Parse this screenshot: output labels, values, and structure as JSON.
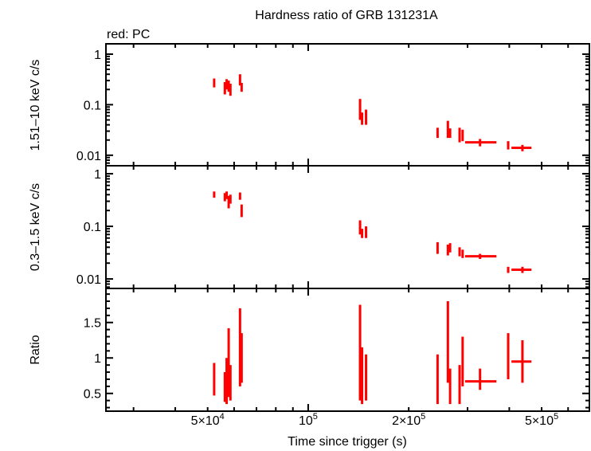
{
  "chart_data": {
    "type": "scatter",
    "title": "Hardness ratio of GRB 131231A",
    "legend_note": "red: PC",
    "xlabel": "Time since trigger (s)",
    "x_scale": "log",
    "xlim": [
      24800,
      695000
    ],
    "x_tick_labels": [
      {
        "value": 50000,
        "label": "5×10",
        "sup": "4"
      },
      {
        "value": 100000,
        "label": "10",
        "sup": "5"
      },
      {
        "value": 200000,
        "label": "2×10",
        "sup": "5"
      },
      {
        "value": 500000,
        "label": "5×10",
        "sup": "5"
      }
    ],
    "series_color": "#ff0000",
    "panels": [
      {
        "key": "hard",
        "ylabel": "1.51–10 keV c/s",
        "y_scale": "log",
        "ylim": [
          0.0062,
          1.6
        ],
        "ticks": [
          {
            "value": 1,
            "label": "1"
          },
          {
            "value": 0.1,
            "label": "0.1"
          },
          {
            "value": 0.01,
            "label": "0.01"
          }
        ]
      },
      {
        "key": "soft",
        "ylabel": "0.3–1.5 keV c/s",
        "y_scale": "log",
        "ylim": [
          0.0066,
          1.42
        ],
        "ticks": [
          {
            "value": 1,
            "label": "1"
          },
          {
            "value": 0.1,
            "label": "0.1"
          },
          {
            "value": 0.01,
            "label": "0.01"
          }
        ]
      },
      {
        "key": "ratio",
        "ylabel": "Ratio",
        "y_scale": "linear",
        "ylim": [
          0.25,
          1.98
        ],
        "ticks": [
          {
            "value": 1.5,
            "label": "1.5"
          },
          {
            "value": 1,
            "label": "1"
          },
          {
            "value": 0.5,
            "label": "0.5"
          }
        ]
      }
    ],
    "points": [
      {
        "t": 52300,
        "tlo": 52000,
        "thi": 52600,
        "hard": [
          0.27,
          0.22,
          0.33
        ],
        "soft": [
          0.4,
          0.35,
          0.46
        ],
        "ratio": [
          0.7,
          0.47,
          0.93
        ]
      },
      {
        "t": 56300,
        "tlo": 56000,
        "thi": 56600,
        "hard": [
          0.22,
          0.16,
          0.28
        ],
        "soft": [
          0.36,
          0.3,
          0.43
        ],
        "ratio": [
          0.55,
          0.38,
          0.8
        ]
      },
      {
        "t": 57000,
        "tlo": 56700,
        "thi": 57300,
        "hard": [
          0.26,
          0.2,
          0.32
        ],
        "soft": [
          0.4,
          0.33,
          0.46
        ],
        "ratio": [
          0.65,
          0.35,
          1.0
        ]
      },
      {
        "t": 57800,
        "tlo": 57500,
        "thi": 58100,
        "hard": [
          0.24,
          0.18,
          0.3
        ],
        "soft": [
          0.3,
          0.22,
          0.38
        ],
        "ratio": [
          0.78,
          0.45,
          1.42
        ]
      },
      {
        "t": 58500,
        "tlo": 58200,
        "thi": 58800,
        "hard": [
          0.2,
          0.15,
          0.26
        ],
        "soft": [
          0.33,
          0.27,
          0.4
        ],
        "ratio": [
          0.6,
          0.4,
          0.9
        ]
      },
      {
        "t": 62500,
        "tlo": 62200,
        "thi": 62800,
        "hard": [
          0.3,
          0.24,
          0.4
        ],
        "soft": [
          0.38,
          0.32,
          0.44
        ],
        "ratio": [
          0.85,
          0.6,
          1.7
        ]
      },
      {
        "t": 63200,
        "tlo": 62900,
        "thi": 63500,
        "hard": [
          0.22,
          0.18,
          0.27
        ],
        "soft": [
          0.2,
          0.15,
          0.26
        ],
        "ratio": [
          1.05,
          0.65,
          1.35
        ]
      },
      {
        "t": 143000,
        "tlo": 142500,
        "thi": 143500,
        "hard": [
          0.08,
          0.05,
          0.13
        ],
        "soft": [
          0.09,
          0.07,
          0.13
        ],
        "ratio": [
          0.75,
          0.4,
          1.75
        ]
      },
      {
        "t": 145000,
        "tlo": 144500,
        "thi": 145500,
        "hard": [
          0.05,
          0.04,
          0.07
        ],
        "soft": [
          0.07,
          0.06,
          0.09
        ],
        "ratio": [
          0.6,
          0.35,
          1.15
        ]
      },
      {
        "t": 149000,
        "tlo": 148500,
        "thi": 149500,
        "hard": [
          0.06,
          0.04,
          0.08
        ],
        "soft": [
          0.08,
          0.06,
          0.1
        ],
        "ratio": [
          0.65,
          0.4,
          1.05
        ]
      },
      {
        "t": 244000,
        "tlo": 243000,
        "thi": 245000,
        "hard": [
          0.028,
          0.022,
          0.035
        ],
        "soft": [
          0.04,
          0.03,
          0.05
        ],
        "ratio": [
          0.6,
          0.35,
          1.05
        ]
      },
      {
        "t": 262000,
        "tlo": 261000,
        "thi": 263000,
        "hard": [
          0.033,
          0.022,
          0.048
        ],
        "soft": [
          0.035,
          0.028,
          0.045
        ],
        "ratio": [
          0.95,
          0.65,
          1.8
        ]
      },
      {
        "t": 266000,
        "tlo": 265000,
        "thi": 267000,
        "hard": [
          0.028,
          0.022,
          0.034
        ],
        "soft": [
          0.04,
          0.032,
          0.048
        ],
        "ratio": [
          0.6,
          0.35,
          0.85
        ]
      },
      {
        "t": 284000,
        "tlo": 283000,
        "thi": 285000,
        "hard": [
          0.025,
          0.018,
          0.035
        ],
        "soft": [
          0.033,
          0.027,
          0.04
        ],
        "ratio": [
          0.65,
          0.35,
          0.9
        ]
      },
      {
        "t": 290000,
        "tlo": 289000,
        "thi": 291000,
        "hard": [
          0.025,
          0.019,
          0.032
        ],
        "soft": [
          0.03,
          0.025,
          0.036
        ],
        "ratio": [
          0.75,
          0.6,
          1.3
        ]
      },
      {
        "t": 327000,
        "tlo": 295000,
        "thi": 366000,
        "hard": [
          0.018,
          0.015,
          0.021
        ],
        "soft": [
          0.027,
          0.024,
          0.03
        ],
        "ratio": [
          0.67,
          0.55,
          0.85
        ]
      },
      {
        "t": 397000,
        "tlo": 394000,
        "thi": 400000,
        "hard": [
          0.016,
          0.013,
          0.019
        ],
        "soft": [
          0.015,
          0.013,
          0.017
        ],
        "ratio": [
          1.05,
          0.7,
          1.35
        ]
      },
      {
        "t": 438000,
        "tlo": 406000,
        "thi": 466000,
        "hard": [
          0.014,
          0.012,
          0.016
        ],
        "soft": [
          0.015,
          0.013,
          0.017
        ],
        "ratio": [
          0.95,
          0.65,
          1.25
        ]
      }
    ]
  }
}
